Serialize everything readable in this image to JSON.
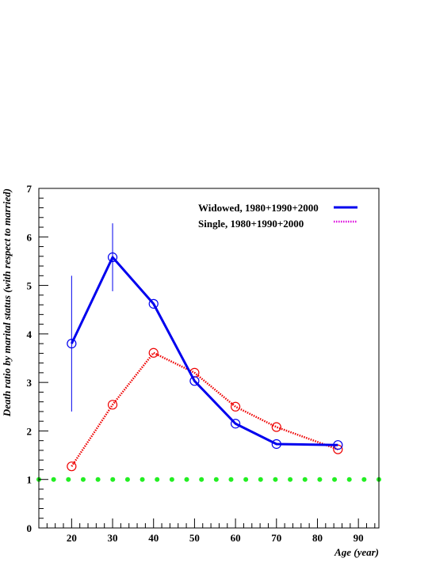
{
  "chart_data": {
    "type": "line",
    "title": "",
    "xlabel": "Age (year)",
    "ylabel": "Death ratio by marital status (with respect to married)",
    "xlim": [
      12,
      95
    ],
    "ylim": [
      0,
      7
    ],
    "x_ticks": [
      20,
      30,
      40,
      50,
      60,
      70,
      80,
      90
    ],
    "y_ticks": [
      0,
      1,
      2,
      3,
      4,
      5,
      6,
      7
    ],
    "grid": false,
    "legend_position": "top-right",
    "series": [
      {
        "name": "Widowed, 1980+1990+2000",
        "color": "#0000ee",
        "style": "solid",
        "marker": "open-circle",
        "x": [
          20,
          30,
          40,
          50,
          60,
          70,
          85
        ],
        "y": [
          3.8,
          5.58,
          4.62,
          3.03,
          2.15,
          1.73,
          1.71
        ],
        "error_low": [
          2.4,
          4.88,
          null,
          null,
          null,
          null,
          null
        ],
        "error_high": [
          5.2,
          6.28,
          null,
          null,
          null,
          null,
          null
        ]
      },
      {
        "name": "Single, 1980+1990+2000",
        "color": "#ee0000",
        "legend_color": "#dd00dd",
        "style": "dotted",
        "marker": "open-circle",
        "x": [
          20,
          30,
          40,
          50,
          60,
          70,
          85
        ],
        "y": [
          1.27,
          2.54,
          3.61,
          3.2,
          2.5,
          2.08,
          1.62
        ]
      }
    ],
    "reference_line": {
      "y": 1,
      "color": "#22ee22",
      "style": "dotted-large"
    }
  }
}
